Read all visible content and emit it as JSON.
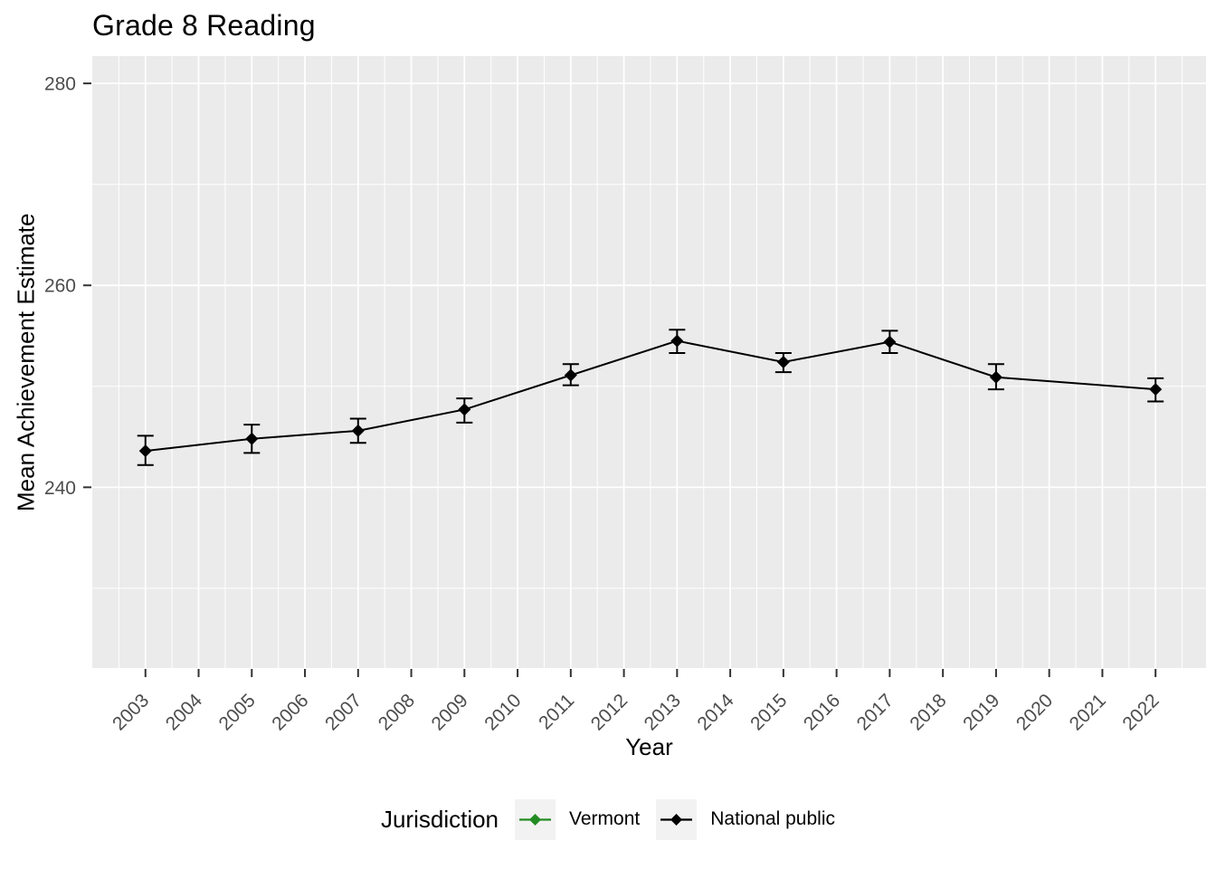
{
  "chart_data": {
    "type": "line",
    "title": "Grade 8 Reading",
    "xlabel": "Year",
    "ylabel": "Mean Achievement Estimate",
    "x_ticks": [
      2003,
      2004,
      2005,
      2006,
      2007,
      2008,
      2009,
      2010,
      2011,
      2012,
      2013,
      2014,
      2015,
      2016,
      2017,
      2018,
      2019,
      2020,
      2021,
      2022
    ],
    "y_ticks": [
      240,
      260,
      280
    ],
    "y_minor_ticks": [
      230,
      250,
      270
    ],
    "xlim": [
      2002.0,
      2022.95
    ],
    "ylim": [
      222.1,
      282.7
    ],
    "grid": true,
    "legend_position": "bottom",
    "point_shape": "diamond",
    "error_bars": true,
    "legend": {
      "title": "Jurisdiction",
      "entries": [
        {
          "label": "Vermont",
          "color": "#228B22"
        },
        {
          "label": "National public",
          "color": "#000000"
        }
      ]
    },
    "series": [
      {
        "name": "Vermont",
        "color": "#228B22",
        "points": []
      },
      {
        "name": "National public",
        "color": "#000000",
        "points": [
          {
            "x": 2003,
            "y": 243.6,
            "lo": 242.2,
            "hi": 245.1
          },
          {
            "x": 2005,
            "y": 244.8,
            "lo": 243.4,
            "hi": 246.2
          },
          {
            "x": 2007,
            "y": 245.6,
            "lo": 244.4,
            "hi": 246.8
          },
          {
            "x": 2009,
            "y": 247.7,
            "lo": 246.4,
            "hi": 248.8
          },
          {
            "x": 2011,
            "y": 251.1,
            "lo": 250.1,
            "hi": 252.2
          },
          {
            "x": 2013,
            "y": 254.5,
            "lo": 253.3,
            "hi": 255.6
          },
          {
            "x": 2015,
            "y": 252.4,
            "lo": 251.4,
            "hi": 253.3
          },
          {
            "x": 2017,
            "y": 254.4,
            "lo": 253.3,
            "hi": 255.5
          },
          {
            "x": 2019,
            "y": 250.9,
            "lo": 249.7,
            "hi": 252.2
          },
          {
            "x": 2022,
            "y": 249.7,
            "lo": 248.5,
            "hi": 250.8
          }
        ]
      }
    ]
  },
  "colors": {
    "panel_bg": "#EBEBEB",
    "grid": "#FFFFFF",
    "tick_mark": "#333333",
    "tick_label": "#4D4D4D",
    "text": "#000000",
    "legend_key_bg": "#F2F2F2"
  }
}
